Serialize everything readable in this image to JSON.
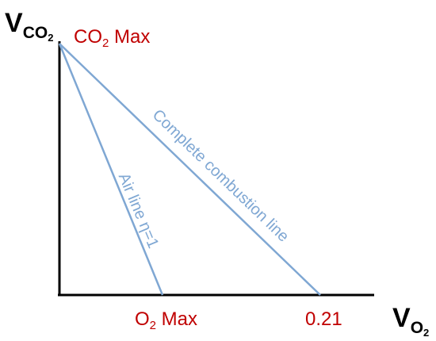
{
  "axes": {
    "y": {
      "main": "V",
      "sub": "CO",
      "subsub": "2"
    },
    "x": {
      "main": "V",
      "sub": "O",
      "subsub": "2"
    }
  },
  "labels": {
    "co2max": {
      "main": "CO",
      "sub": "2",
      "rest": " Max"
    },
    "o2max": {
      "main": "O",
      "sub": "2",
      "rest": " Max"
    },
    "point_021": "0.21",
    "complete_combustion": "Complete combustion line",
    "air_line": "Air line η=1"
  },
  "colors": {
    "axis": "#000000",
    "line": "#7fa7d3",
    "label_red": "#c00000"
  }
}
